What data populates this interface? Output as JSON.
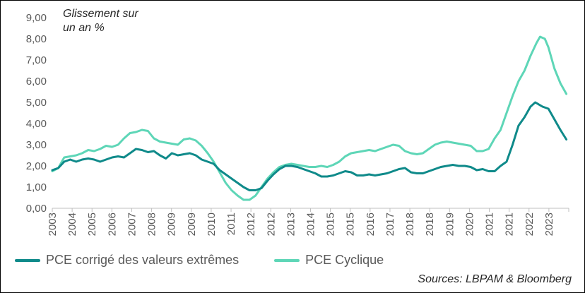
{
  "chart_data": {
    "type": "line",
    "title": "",
    "ylabel": "Glissement sur un an %",
    "ylabel_lines": [
      "Glissement sur",
      "un an %"
    ],
    "xlabel": "",
    "ylim": [
      0,
      9
    ],
    "xlim": [
      2003.0,
      2023.75
    ],
    "yticks": [
      "0,00",
      "1,00",
      "2,00",
      "3,00",
      "4,00",
      "5,00",
      "6,00",
      "7,00",
      "8,00",
      "9,00"
    ],
    "xticks": [
      "2003",
      "2004",
      "2005",
      "2006",
      "2007",
      "2008",
      "2009",
      "2009",
      "2010",
      "2011",
      "2012",
      "2012",
      "2013",
      "2014",
      "2015",
      "2015",
      "2016",
      "2017",
      "2018",
      "2018",
      "2019",
      "2020",
      "2021",
      "2021",
      "2022",
      "2023"
    ],
    "source": "Sources: LBPAM & Bloomberg",
    "series": [
      {
        "name": "PCE corrigé des valeurs extrêmes",
        "color": "#0f8a8a",
        "points": [
          [
            2003.0,
            1.8
          ],
          [
            2003.25,
            1.9
          ],
          [
            2003.5,
            2.2
          ],
          [
            2003.75,
            2.3
          ],
          [
            2004.0,
            2.2
          ],
          [
            2004.25,
            2.3
          ],
          [
            2004.5,
            2.35
          ],
          [
            2004.75,
            2.3
          ],
          [
            2005.0,
            2.2
          ],
          [
            2005.25,
            2.3
          ],
          [
            2005.5,
            2.4
          ],
          [
            2005.75,
            2.45
          ],
          [
            2006.0,
            2.4
          ],
          [
            2006.25,
            2.6
          ],
          [
            2006.5,
            2.8
          ],
          [
            2006.75,
            2.75
          ],
          [
            2007.0,
            2.65
          ],
          [
            2007.25,
            2.7
          ],
          [
            2007.5,
            2.5
          ],
          [
            2007.75,
            2.35
          ],
          [
            2008.0,
            2.6
          ],
          [
            2008.25,
            2.5
          ],
          [
            2008.5,
            2.55
          ],
          [
            2008.75,
            2.6
          ],
          [
            2009.0,
            2.5
          ],
          [
            2009.25,
            2.3
          ],
          [
            2009.5,
            2.2
          ],
          [
            2009.75,
            2.1
          ],
          [
            2010.0,
            1.8
          ],
          [
            2010.25,
            1.6
          ],
          [
            2010.5,
            1.4
          ],
          [
            2010.75,
            1.2
          ],
          [
            2011.0,
            1.0
          ],
          [
            2011.25,
            0.85
          ],
          [
            2011.5,
            0.85
          ],
          [
            2011.75,
            0.95
          ],
          [
            2012.0,
            1.3
          ],
          [
            2012.25,
            1.6
          ],
          [
            2012.5,
            1.85
          ],
          [
            2012.75,
            2.0
          ],
          [
            2013.0,
            2.0
          ],
          [
            2013.25,
            1.95
          ],
          [
            2013.5,
            1.85
          ],
          [
            2013.75,
            1.75
          ],
          [
            2014.0,
            1.65
          ],
          [
            2014.25,
            1.5
          ],
          [
            2014.5,
            1.5
          ],
          [
            2014.75,
            1.55
          ],
          [
            2015.0,
            1.65
          ],
          [
            2015.25,
            1.75
          ],
          [
            2015.5,
            1.7
          ],
          [
            2015.75,
            1.55
          ],
          [
            2016.0,
            1.55
          ],
          [
            2016.25,
            1.6
          ],
          [
            2016.5,
            1.55
          ],
          [
            2016.75,
            1.6
          ],
          [
            2017.0,
            1.65
          ],
          [
            2017.25,
            1.75
          ],
          [
            2017.5,
            1.85
          ],
          [
            2017.75,
            1.9
          ],
          [
            2018.0,
            1.7
          ],
          [
            2018.25,
            1.65
          ],
          [
            2018.5,
            1.65
          ],
          [
            2018.75,
            1.75
          ],
          [
            2019.0,
            1.85
          ],
          [
            2019.25,
            1.95
          ],
          [
            2019.5,
            2.0
          ],
          [
            2019.75,
            2.05
          ],
          [
            2020.0,
            2.0
          ],
          [
            2020.25,
            2.0
          ],
          [
            2020.5,
            1.95
          ],
          [
            2020.75,
            1.8
          ],
          [
            2021.0,
            1.85
          ],
          [
            2021.25,
            1.75
          ],
          [
            2021.5,
            1.75
          ],
          [
            2021.75,
            2.0
          ],
          [
            2022.0,
            2.2
          ],
          [
            2022.25,
            3.0
          ],
          [
            2022.5,
            3.9
          ],
          [
            2022.75,
            4.3
          ],
          [
            2023.0,
            4.8
          ],
          [
            2023.2,
            5.0
          ],
          [
            2023.5,
            4.8
          ],
          [
            2023.75,
            4.7
          ],
          [
            2024.0,
            4.2
          ],
          [
            2024.25,
            3.7
          ],
          [
            2024.5,
            3.25
          ]
        ]
      },
      {
        "name": "PCE Cyclique",
        "color": "#5ed6b7",
        "points": [
          [
            2003.0,
            1.75
          ],
          [
            2003.25,
            1.9
          ],
          [
            2003.5,
            2.4
          ],
          [
            2003.75,
            2.45
          ],
          [
            2004.0,
            2.5
          ],
          [
            2004.25,
            2.6
          ],
          [
            2004.5,
            2.75
          ],
          [
            2004.75,
            2.7
          ],
          [
            2005.0,
            2.8
          ],
          [
            2005.25,
            2.95
          ],
          [
            2005.5,
            2.9
          ],
          [
            2005.75,
            3.0
          ],
          [
            2006.0,
            3.3
          ],
          [
            2006.25,
            3.55
          ],
          [
            2006.5,
            3.6
          ],
          [
            2006.75,
            3.7
          ],
          [
            2007.0,
            3.65
          ],
          [
            2007.25,
            3.3
          ],
          [
            2007.5,
            3.15
          ],
          [
            2007.75,
            3.1
          ],
          [
            2008.0,
            3.05
          ],
          [
            2008.25,
            3.0
          ],
          [
            2008.5,
            3.25
          ],
          [
            2008.75,
            3.3
          ],
          [
            2009.0,
            3.2
          ],
          [
            2009.25,
            2.95
          ],
          [
            2009.5,
            2.6
          ],
          [
            2009.75,
            2.2
          ],
          [
            2010.0,
            1.7
          ],
          [
            2010.25,
            1.2
          ],
          [
            2010.5,
            0.85
          ],
          [
            2010.75,
            0.6
          ],
          [
            2011.0,
            0.4
          ],
          [
            2011.25,
            0.4
          ],
          [
            2011.5,
            0.6
          ],
          [
            2011.75,
            1.0
          ],
          [
            2012.0,
            1.4
          ],
          [
            2012.25,
            1.7
          ],
          [
            2012.5,
            1.95
          ],
          [
            2012.75,
            2.05
          ],
          [
            2013.0,
            2.1
          ],
          [
            2013.25,
            2.05
          ],
          [
            2013.5,
            2.0
          ],
          [
            2013.75,
            1.95
          ],
          [
            2014.0,
            1.95
          ],
          [
            2014.25,
            2.0
          ],
          [
            2014.5,
            1.95
          ],
          [
            2014.75,
            2.05
          ],
          [
            2015.0,
            2.2
          ],
          [
            2015.25,
            2.45
          ],
          [
            2015.5,
            2.6
          ],
          [
            2015.75,
            2.65
          ],
          [
            2016.0,
            2.7
          ],
          [
            2016.25,
            2.75
          ],
          [
            2016.5,
            2.7
          ],
          [
            2016.75,
            2.8
          ],
          [
            2017.0,
            2.9
          ],
          [
            2017.25,
            3.0
          ],
          [
            2017.5,
            2.95
          ],
          [
            2017.75,
            2.7
          ],
          [
            2018.0,
            2.6
          ],
          [
            2018.25,
            2.55
          ],
          [
            2018.5,
            2.6
          ],
          [
            2018.75,
            2.8
          ],
          [
            2019.0,
            3.0
          ],
          [
            2019.25,
            3.1
          ],
          [
            2019.5,
            3.15
          ],
          [
            2019.75,
            3.1
          ],
          [
            2020.0,
            3.05
          ],
          [
            2020.25,
            3.0
          ],
          [
            2020.5,
            2.95
          ],
          [
            2020.75,
            2.7
          ],
          [
            2021.0,
            2.7
          ],
          [
            2021.25,
            2.8
          ],
          [
            2021.5,
            3.3
          ],
          [
            2021.75,
            3.7
          ],
          [
            2022.0,
            4.5
          ],
          [
            2022.25,
            5.3
          ],
          [
            2022.5,
            6.0
          ],
          [
            2022.75,
            6.5
          ],
          [
            2023.0,
            7.2
          ],
          [
            2023.25,
            7.8
          ],
          [
            2023.4,
            8.1
          ],
          [
            2023.6,
            8.0
          ],
          [
            2023.75,
            7.6
          ],
          [
            2024.0,
            6.6
          ],
          [
            2024.25,
            5.9
          ],
          [
            2024.5,
            5.4
          ]
        ]
      }
    ]
  },
  "legend": {
    "item1": "PCE corrigé des valeurs extrêmes",
    "item2": "PCE Cyclique"
  }
}
